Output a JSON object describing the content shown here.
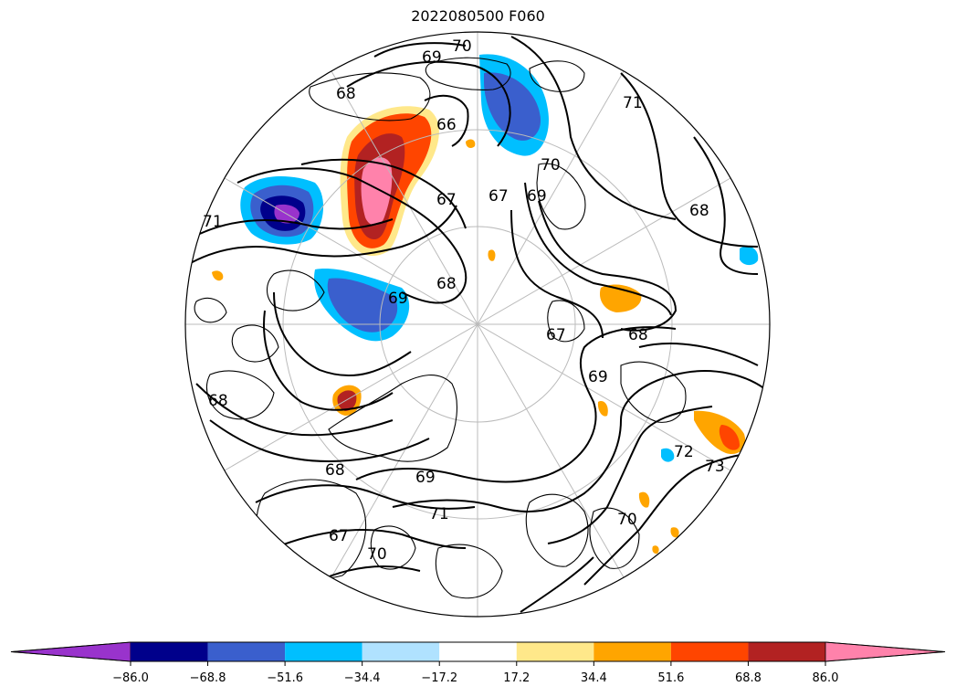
{
  "title": "2022080500 F060",
  "colorbar": {
    "colors": [
      "#9933cc",
      "#00008b",
      "#3a5fcd",
      "#00bfff",
      "#b0e2ff",
      "#ffffff",
      "#ffe88a",
      "#ffa500",
      "#ff4500",
      "#b22222",
      "#ff82ab"
    ],
    "ticks": [
      "−86.0",
      "−68.8",
      "−51.6",
      "−34.4",
      "−17.2",
      "17.2",
      "34.4",
      "51.6",
      "68.8",
      "86.0"
    ],
    "extend": "both"
  },
  "map": {
    "projection": "north-polar-stereographic",
    "contour_levels_shown": [
      "67",
      "68",
      "69",
      "70",
      "71",
      "72",
      "73"
    ],
    "contour_labels": [
      {
        "text": "70"
      },
      {
        "text": "69"
      },
      {
        "text": "68"
      },
      {
        "text": "66"
      },
      {
        "text": "67"
      },
      {
        "text": "67"
      },
      {
        "text": "71"
      },
      {
        "text": "70"
      },
      {
        "text": "69"
      },
      {
        "text": "68"
      },
      {
        "text": "68"
      },
      {
        "text": "69"
      },
      {
        "text": "67"
      },
      {
        "text": "68"
      },
      {
        "text": "69"
      },
      {
        "text": "72"
      },
      {
        "text": "73"
      },
      {
        "text": "68"
      },
      {
        "text": "69"
      },
      {
        "text": "71"
      },
      {
        "text": "70"
      },
      {
        "text": "67"
      },
      {
        "text": "68"
      },
      {
        "text": "70"
      },
      {
        "text": "71"
      }
    ]
  }
}
